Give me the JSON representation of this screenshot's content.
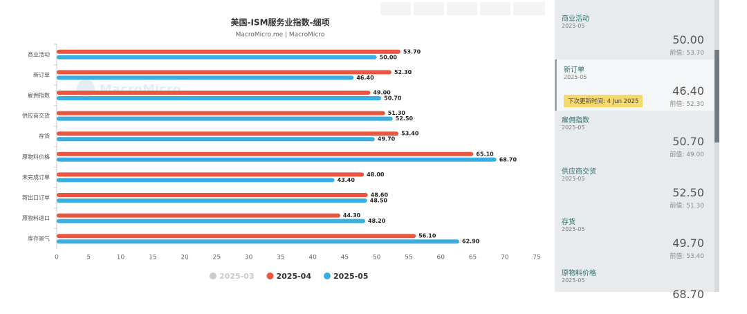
{
  "chart_data": {
    "type": "hbar",
    "title": "美国-ISM服务业指数-细项",
    "subtitle": "MacroMicro.me | MacroMicro",
    "watermark": "MacroMicro",
    "categories": [
      "商业活动",
      "新订单",
      "雇佣指数",
      "供应商交货",
      "存货",
      "原物料价格",
      "未完成订单",
      "新出口订单",
      "原物料进口",
      "库存景气"
    ],
    "series": [
      {
        "name": "2025-03",
        "color": "#cccccc",
        "hidden": true,
        "values": [
          null,
          null,
          null,
          null,
          null,
          null,
          null,
          null,
          null,
          null
        ]
      },
      {
        "name": "2025-04",
        "color": "#e8563f",
        "values": [
          53.7,
          52.3,
          49.0,
          51.3,
          53.4,
          65.1,
          48.0,
          48.6,
          44.3,
          56.1
        ],
        "value_labels": [
          "53.70",
          "52.30",
          "49.00",
          "51.30",
          "53.40",
          "65.10",
          "48.00",
          "48.60",
          "44.30",
          "56.10"
        ]
      },
      {
        "name": "2025-05",
        "color": "#3aaee0",
        "values": [
          50.0,
          46.4,
          50.7,
          52.5,
          49.7,
          68.7,
          43.4,
          48.5,
          48.2,
          62.9
        ],
        "value_labels": [
          "50.00",
          "46.40",
          "50.70",
          "52.50",
          "49.70",
          "68.70",
          "43.40",
          "48.50",
          "48.20",
          "62.90"
        ]
      }
    ],
    "xlim": [
      0,
      75
    ],
    "xticks": [
      0,
      5,
      10,
      15,
      20,
      25,
      30,
      35,
      40,
      45,
      50,
      55,
      60,
      65,
      70,
      75
    ],
    "grid": false,
    "legend": "bottom"
  },
  "sidebar": {
    "items": [
      {
        "name": "商业活动",
        "date": "2025-05",
        "value": "50.00",
        "previous": "前值: 53.70"
      },
      {
        "name": "新订单",
        "date": "2025-05",
        "value": "46.40",
        "previous": "前值: 52.30",
        "badge": "下次更新时间: 4 Jun 2025",
        "active": true
      },
      {
        "name": "雇佣指数",
        "date": "2025-05",
        "value": "50.70",
        "previous": "前值: 49.00"
      },
      {
        "name": "供应商交货",
        "date": "2025-05",
        "value": "52.50",
        "previous": "前值: 51.30"
      },
      {
        "name": "存货",
        "date": "2025-05",
        "value": "49.70",
        "previous": "前值: 53.40"
      },
      {
        "name": "原物料价格",
        "date": "2025-05",
        "value": "68.70"
      }
    ]
  }
}
